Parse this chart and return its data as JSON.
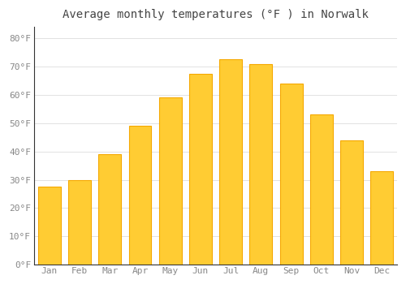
{
  "title": "Average monthly temperatures (°F ) in Norwalk",
  "months": [
    "Jan",
    "Feb",
    "Mar",
    "Apr",
    "May",
    "Jun",
    "Jul",
    "Aug",
    "Sep",
    "Oct",
    "Nov",
    "Dec"
  ],
  "values": [
    27.5,
    30.0,
    39.0,
    49.0,
    59.0,
    67.5,
    72.5,
    71.0,
    64.0,
    53.0,
    44.0,
    33.0
  ],
  "bar_color_center": "#FFCC33",
  "bar_color_edge": "#F5A800",
  "background_color": "#FFFFFF",
  "grid_color": "#DDDDDD",
  "text_color": "#888888",
  "title_color": "#444444",
  "ylim": [
    0,
    84
  ],
  "yticks": [
    0,
    10,
    20,
    30,
    40,
    50,
    60,
    70,
    80
  ],
  "title_fontsize": 10,
  "tick_fontsize": 8,
  "bar_width": 0.75
}
